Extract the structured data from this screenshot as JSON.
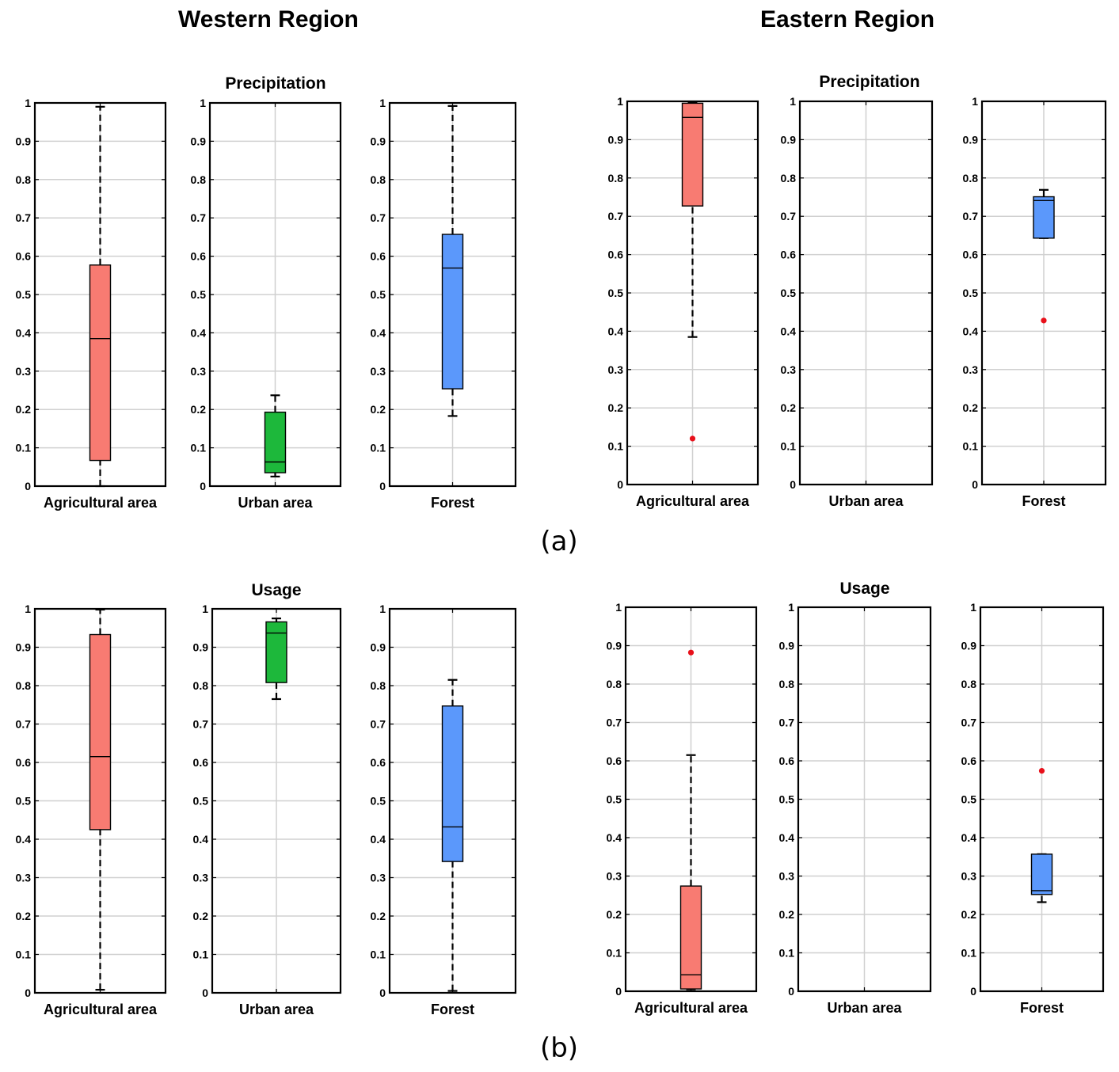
{
  "figure": {
    "region_titles": [
      "Western Region",
      "Eastern Region"
    ],
    "captions": [
      "(a)",
      "(b)"
    ],
    "colors": {
      "Agricultural area": "#f87b72",
      "Urban area": "#1db83b",
      "Forest": "#5b98fb",
      "outlier": "#e8101a",
      "grid": "#d0d0d0"
    }
  },
  "chart_data": [
    {
      "type": "boxplot",
      "region": "Western Region",
      "panel": "(a)",
      "title": "Precipitation",
      "xlabel": "Agricultural area",
      "ylim": [
        0,
        1
      ],
      "yticks": [
        0,
        0.1,
        0.2,
        0.3,
        0.4,
        0.5,
        0.6,
        0.7,
        0.8,
        0.9,
        1
      ],
      "grid": true,
      "box": {
        "whisker_low": 0.0,
        "q1": 0.067,
        "median": 0.385,
        "q3": 0.577,
        "whisker_high": 0.99
      },
      "outliers": []
    },
    {
      "type": "boxplot",
      "region": "Western Region",
      "panel": "(a)",
      "title": "",
      "xlabel": "Urban area",
      "ylim": [
        0,
        1
      ],
      "yticks": [
        0,
        0.1,
        0.2,
        0.3,
        0.4,
        0.5,
        0.6,
        0.7,
        0.8,
        0.9,
        1
      ],
      "grid": true,
      "box": {
        "whisker_low": 0.025,
        "q1": 0.035,
        "median": 0.063,
        "q3": 0.193,
        "whisker_high": 0.237
      },
      "outliers": []
    },
    {
      "type": "boxplot",
      "region": "Western Region",
      "panel": "(a)",
      "title": "",
      "xlabel": "Forest",
      "ylim": [
        0,
        1
      ],
      "yticks": [
        0,
        0.1,
        0.2,
        0.3,
        0.4,
        0.5,
        0.6,
        0.7,
        0.8,
        0.9,
        1
      ],
      "grid": true,
      "box": {
        "whisker_low": 0.183,
        "q1": 0.254,
        "median": 0.569,
        "q3": 0.657,
        "whisker_high": 0.992
      },
      "outliers": []
    },
    {
      "type": "boxplot",
      "region": "Eastern Region",
      "panel": "(a)",
      "title": "Precipitation",
      "xlabel": "Agricultural area",
      "ylim": [
        0,
        1
      ],
      "yticks": [
        0,
        0.1,
        0.2,
        0.3,
        0.4,
        0.5,
        0.6,
        0.7,
        0.8,
        0.9,
        1
      ],
      "grid": true,
      "box": {
        "whisker_low": 0.385,
        "q1": 0.727,
        "median": 0.958,
        "q3": 0.995,
        "whisker_high": 0.998
      },
      "outliers": [
        0.12
      ]
    },
    {
      "type": "boxplot",
      "region": "Eastern Region",
      "panel": "(a)",
      "title": "",
      "xlabel": "Urban area",
      "ylim": [
        0,
        1
      ],
      "yticks": [
        0,
        0.1,
        0.2,
        0.3,
        0.4,
        0.5,
        0.6,
        0.7,
        0.8,
        0.9,
        1
      ],
      "grid": true,
      "box": null,
      "outliers": []
    },
    {
      "type": "boxplot",
      "region": "Eastern Region",
      "panel": "(a)",
      "title": "",
      "xlabel": "Forest",
      "ylim": [
        0,
        1
      ],
      "yticks": [
        0,
        0.1,
        0.2,
        0.3,
        0.4,
        0.5,
        0.6,
        0.7,
        0.8,
        0.9,
        1
      ],
      "grid": true,
      "box": {
        "whisker_low": 0.643,
        "q1": 0.643,
        "median": 0.741,
        "q3": 0.751,
        "whisker_high": 0.769
      },
      "outliers": [
        0.428
      ]
    },
    {
      "type": "boxplot",
      "region": "Western Region",
      "panel": "(b)",
      "title": "Usage",
      "xlabel": "Agricultural area",
      "ylim": [
        0,
        1
      ],
      "yticks": [
        0,
        0.1,
        0.2,
        0.3,
        0.4,
        0.5,
        0.6,
        0.7,
        0.8,
        0.9,
        1
      ],
      "grid": true,
      "box": {
        "whisker_low": 0.008,
        "q1": 0.425,
        "median": 0.615,
        "q3": 0.933,
        "whisker_high": 0.998
      },
      "outliers": []
    },
    {
      "type": "boxplot",
      "region": "Western Region",
      "panel": "(b)",
      "title": "",
      "xlabel": "Urban area",
      "ylim": [
        0,
        1
      ],
      "yticks": [
        0,
        0.1,
        0.2,
        0.3,
        0.4,
        0.5,
        0.6,
        0.7,
        0.8,
        0.9,
        1
      ],
      "grid": true,
      "box": {
        "whisker_low": 0.765,
        "q1": 0.808,
        "median": 0.937,
        "q3": 0.966,
        "whisker_high": 0.975
      },
      "outliers": []
    },
    {
      "type": "boxplot",
      "region": "Western Region",
      "panel": "(b)",
      "title": "",
      "xlabel": "Forest",
      "ylim": [
        0,
        1
      ],
      "yticks": [
        0,
        0.1,
        0.2,
        0.3,
        0.4,
        0.5,
        0.6,
        0.7,
        0.8,
        0.9,
        1
      ],
      "grid": true,
      "box": {
        "whisker_low": 0.005,
        "q1": 0.342,
        "median": 0.432,
        "q3": 0.747,
        "whisker_high": 0.815
      },
      "outliers": []
    },
    {
      "type": "boxplot",
      "region": "Eastern Region",
      "panel": "(b)",
      "title": "Usage",
      "xlabel": "Agricultural area",
      "ylim": [
        0,
        1
      ],
      "yticks": [
        0,
        0.1,
        0.2,
        0.3,
        0.4,
        0.5,
        0.6,
        0.7,
        0.8,
        0.9,
        1
      ],
      "grid": true,
      "box": {
        "whisker_low": 0.005,
        "q1": 0.006,
        "median": 0.043,
        "q3": 0.274,
        "whisker_high": 0.615
      },
      "outliers": [
        0.882
      ]
    },
    {
      "type": "boxplot",
      "region": "Eastern Region",
      "panel": "(b)",
      "title": "",
      "xlabel": "Urban area",
      "ylim": [
        0,
        1
      ],
      "yticks": [
        0,
        0.1,
        0.2,
        0.3,
        0.4,
        0.5,
        0.6,
        0.7,
        0.8,
        0.9,
        1
      ],
      "grid": true,
      "box": null,
      "outliers": []
    },
    {
      "type": "boxplot",
      "region": "Eastern Region",
      "panel": "(b)",
      "title": "",
      "xlabel": "Forest",
      "ylim": [
        0,
        1
      ],
      "yticks": [
        0,
        0.1,
        0.2,
        0.3,
        0.4,
        0.5,
        0.6,
        0.7,
        0.8,
        0.9,
        1
      ],
      "grid": true,
      "box": {
        "whisker_low": 0.232,
        "q1": 0.252,
        "median": 0.262,
        "q3": 0.357,
        "whisker_high": 0.357
      },
      "outliers": [
        0.574
      ]
    }
  ]
}
